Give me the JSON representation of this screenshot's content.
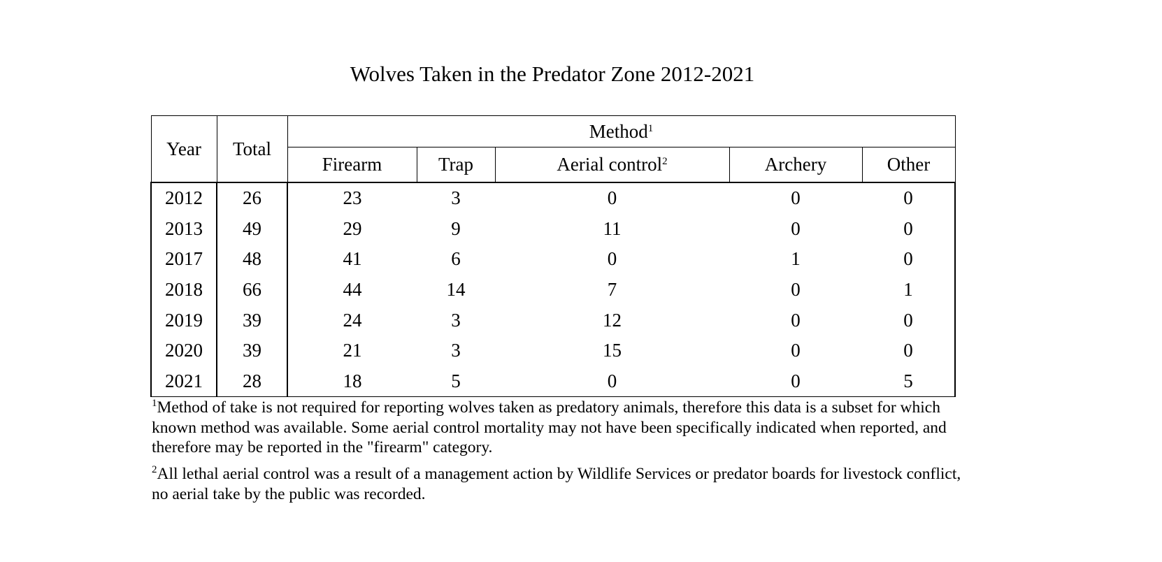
{
  "title": "Wolves Taken in the Predator Zone 2012-2021",
  "table": {
    "headers": {
      "year": "Year",
      "total": "Total",
      "method": "Method",
      "method_sup": "1",
      "firearm": "Firearm",
      "trap": "Trap",
      "aerial": "Aerial control",
      "aerial_sup": "2",
      "archery": "Archery",
      "other": "Other"
    },
    "rows": [
      [
        "2012",
        "26",
        "23",
        "3",
        "0",
        "0",
        "0"
      ],
      [
        "2013",
        "49",
        "29",
        "9",
        "11",
        "0",
        "0"
      ],
      [
        "2017",
        "48",
        "41",
        "6",
        "0",
        "1",
        "0"
      ],
      [
        "2018",
        "66",
        "44",
        "14",
        "7",
        "0",
        "1"
      ],
      [
        "2019",
        "39",
        "24",
        "3",
        "12",
        "0",
        "0"
      ],
      [
        "2020",
        "39",
        "21",
        "3",
        "15",
        "0",
        "0"
      ],
      [
        "2021",
        "28",
        "18",
        "5",
        "0",
        "0",
        "5"
      ]
    ]
  },
  "footnotes": [
    {
      "mark": "1",
      "text": "Method of take is not required for reporting wolves taken as predatory animals, therefore this data is a subset for which known method was available. Some aerial control mortality may not have been specifically indicated when reported, and therefore may be reported in the \"firearm\" category."
    },
    {
      "mark": "2",
      "text": "All lethal aerial control was a result of a management action by Wildlife Services or predator boards for livestock conflict, no aerial take by the public was recorded."
    }
  ]
}
